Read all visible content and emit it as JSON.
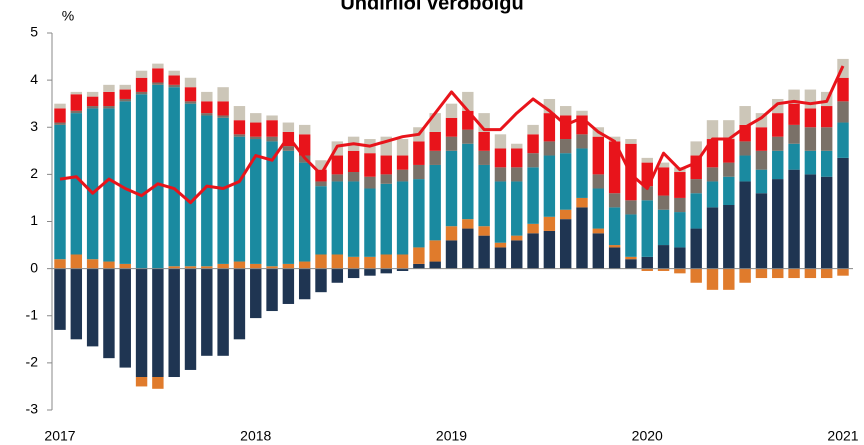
{
  "chart_data": {
    "type": "bar",
    "stacked": true,
    "title": "Undirliði verðbólgu",
    "y_label": "%",
    "categories": [
      "2017",
      null,
      null,
      null,
      null,
      null,
      null,
      null,
      null,
      null,
      null,
      null,
      "2018",
      null,
      null,
      null,
      null,
      null,
      null,
      null,
      null,
      null,
      null,
      null,
      "2019",
      null,
      null,
      null,
      null,
      null,
      null,
      null,
      null,
      null,
      null,
      null,
      "2020",
      null,
      null,
      null,
      null,
      null,
      null,
      null,
      null,
      null,
      null,
      null,
      "2021"
    ],
    "ylim": [
      -3,
      5
    ],
    "yticks": [
      -3,
      -2,
      -1,
      0,
      1,
      2,
      3,
      4,
      5
    ],
    "series": [
      {
        "color": "#1f3552",
        "values": [
          -1.3,
          -1.5,
          -1.65,
          -1.9,
          -2.1,
          -2.3,
          -2.3,
          -2.3,
          -2.15,
          -1.85,
          -1.85,
          -1.5,
          -1.05,
          -0.9,
          -0.75,
          -0.65,
          -0.5,
          -0.3,
          -0.2,
          -0.15,
          -0.1,
          -0.05,
          0.1,
          0.15,
          0.6,
          0.85,
          0.7,
          0.45,
          0.6,
          0.75,
          0.8,
          1.05,
          1.3,
          0.75,
          0.45,
          0.2,
          0.25,
          0.5,
          0.45,
          0.85,
          1.3,
          1.35,
          1.85,
          1.6,
          1.9,
          2.1,
          2.0,
          1.95,
          2.35
        ]
      },
      {
        "color": "#e07b2c",
        "values": [
          0.2,
          0.3,
          0.2,
          0.15,
          0.1,
          -0.2,
          -0.25,
          0.05,
          0.05,
          0.05,
          0.1,
          0.15,
          0.1,
          0.05,
          0.1,
          0.15,
          0.3,
          0.3,
          0.25,
          0.25,
          0.3,
          0.3,
          0.35,
          0.45,
          0.3,
          0.2,
          0.2,
          0.1,
          0.1,
          0.2,
          0.3,
          0.2,
          0.2,
          0.1,
          0.05,
          0.05,
          -0.05,
          -0.05,
          -0.1,
          -0.3,
          -0.45,
          -0.45,
          -0.3,
          -0.2,
          -0.2,
          -0.2,
          -0.2,
          -0.2,
          -0.15
        ]
      },
      {
        "color": "#1a8aa0",
        "values": [
          2.85,
          3.0,
          3.2,
          3.25,
          3.45,
          3.7,
          3.9,
          3.8,
          3.45,
          3.2,
          3.1,
          2.65,
          2.65,
          2.65,
          2.4,
          2.1,
          1.45,
          1.55,
          1.6,
          1.45,
          1.5,
          1.55,
          1.45,
          1.6,
          1.6,
          1.6,
          1.3,
          1.3,
          1.15,
          1.2,
          1.3,
          1.2,
          1.05,
          0.85,
          0.8,
          0.9,
          1.2,
          0.75,
          0.75,
          0.75,
          0.55,
          0.6,
          0.55,
          0.5,
          0.6,
          0.55,
          0.5,
          0.55,
          0.75
        ]
      },
      {
        "color": "#7a7168",
        "values": [
          0.05,
          0.05,
          0.05,
          0.05,
          0.05,
          0.05,
          0.05,
          0.05,
          0.05,
          0.05,
          0.05,
          0.05,
          0.05,
          0.1,
          0.1,
          0.15,
          0.1,
          0.15,
          0.2,
          0.25,
          0.2,
          0.25,
          0.3,
          0.3,
          0.3,
          0.3,
          0.3,
          0.3,
          0.3,
          0.3,
          0.3,
          0.3,
          0.3,
          0.3,
          0.3,
          0.3,
          0.3,
          0.3,
          0.3,
          0.3,
          0.3,
          0.3,
          0.3,
          0.4,
          0.3,
          0.4,
          0.5,
          0.5,
          0.45
        ]
      },
      {
        "color": "#e8141b",
        "values": [
          0.3,
          0.35,
          0.2,
          0.3,
          0.2,
          0.3,
          0.3,
          0.2,
          0.3,
          0.25,
          0.3,
          0.3,
          0.3,
          0.35,
          0.3,
          0.45,
          0.25,
          0.4,
          0.45,
          0.5,
          0.4,
          0.3,
          0.5,
          0.4,
          0.4,
          0.4,
          0.4,
          0.4,
          0.4,
          0.4,
          0.6,
          0.5,
          0.4,
          0.8,
          1.1,
          1.2,
          0.5,
          0.6,
          0.55,
          0.5,
          0.6,
          0.5,
          0.35,
          0.5,
          0.5,
          0.45,
          0.4,
          0.45,
          0.5
        ]
      },
      {
        "color": "#ccc6b8",
        "values": [
          0.1,
          0.05,
          0.1,
          0.15,
          0.1,
          0.15,
          0.1,
          0.1,
          0.2,
          0.2,
          0.3,
          0.3,
          0.2,
          0.1,
          0.2,
          0.2,
          0.2,
          0.3,
          0.3,
          0.3,
          0.4,
          0.35,
          0.3,
          0.4,
          0.3,
          0.4,
          0.4,
          0.3,
          0.1,
          0.2,
          0.3,
          0.2,
          0.1,
          0.2,
          0.1,
          0.1,
          0.1,
          0.1,
          0.1,
          0.3,
          0.4,
          0.4,
          0.4,
          0.3,
          0.3,
          0.3,
          0.4,
          0.3,
          0.4
        ]
      },
      {
        "type": "line",
        "color": "#e8141b",
        "values": [
          1.9,
          1.95,
          1.6,
          1.9,
          1.7,
          1.55,
          1.8,
          1.7,
          1.4,
          1.75,
          1.7,
          1.85,
          2.4,
          2.3,
          2.8,
          2.35,
          2.0,
          2.6,
          2.65,
          2.6,
          2.7,
          2.8,
          2.85,
          3.3,
          3.75,
          3.35,
          2.95,
          2.95,
          3.3,
          3.6,
          3.35,
          3.05,
          3.2,
          2.9,
          2.7,
          2.0,
          1.7,
          2.45,
          2.1,
          2.25,
          2.75,
          2.75,
          3.0,
          3.2,
          3.5,
          3.55,
          3.5,
          3.55,
          4.3
        ]
      }
    ]
  }
}
